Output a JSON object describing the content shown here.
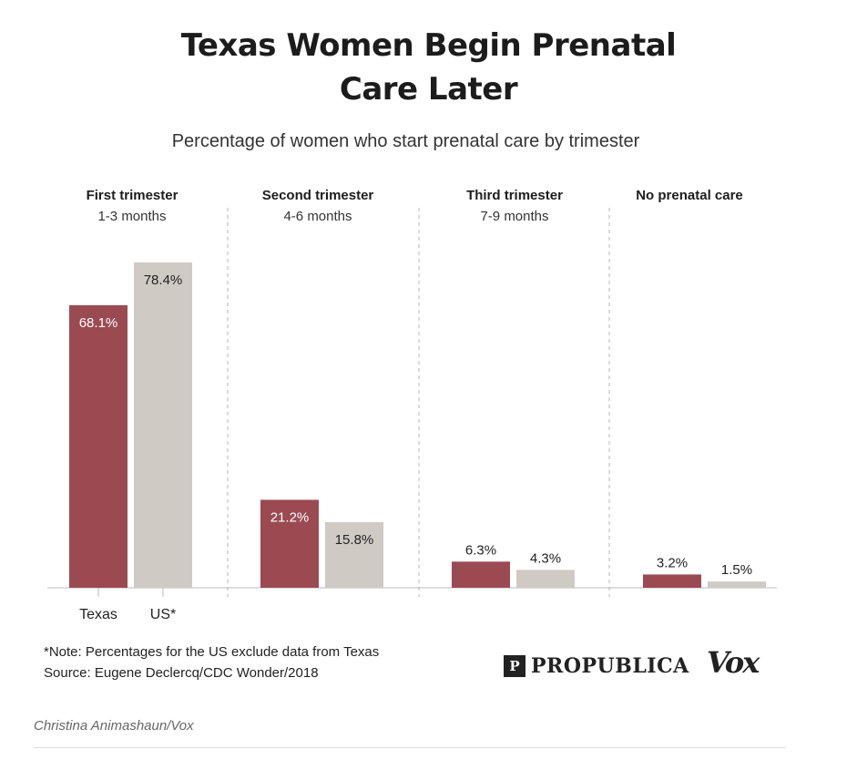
{
  "chart_data": {
    "type": "bar",
    "title": "Texas Women Begin Prenatal Care Later",
    "title_lines": [
      "Texas Women Begin Prenatal",
      "Care Later"
    ],
    "subtitle": "Percentage of women who start prenatal care by trimester",
    "categories": [
      {
        "label": "First trimester",
        "sublabel": "1-3 months"
      },
      {
        "label": "Second trimester",
        "sublabel": "4-6 months"
      },
      {
        "label": "Third trimester",
        "sublabel": "7-9 months"
      },
      {
        "label": "No prenatal care",
        "sublabel": ""
      }
    ],
    "series": [
      {
        "name": "Texas",
        "color": "#9b4a52",
        "values": [
          68.1,
          21.2,
          6.3,
          3.2
        ],
        "labels": [
          "68.1%",
          "21.2%",
          "6.3%",
          "3.2%"
        ]
      },
      {
        "name": "US*",
        "color": "#cfcac4",
        "values": [
          78.4,
          15.8,
          4.3,
          1.5
        ],
        "labels": [
          "78.4%",
          "15.8%",
          "4.3%",
          "1.5%"
        ]
      }
    ],
    "ylim": [
      0,
      80
    ],
    "grid": false,
    "legend": "below first category"
  },
  "note": {
    "line1": "*Note: Percentages for the US exclude data from Texas",
    "line2": "Source: Eugene Declercq/CDC Wonder/2018"
  },
  "logos": {
    "propublica": "PROPUBLICA",
    "propublica_mark": "P",
    "vox": "Vox"
  },
  "credit": "Christina Animashaun/Vox",
  "colors": {
    "texas": "#9b4a52",
    "us": "#cfcac4",
    "axis": "#bbbbbb",
    "divider": "#b5b5b5"
  }
}
